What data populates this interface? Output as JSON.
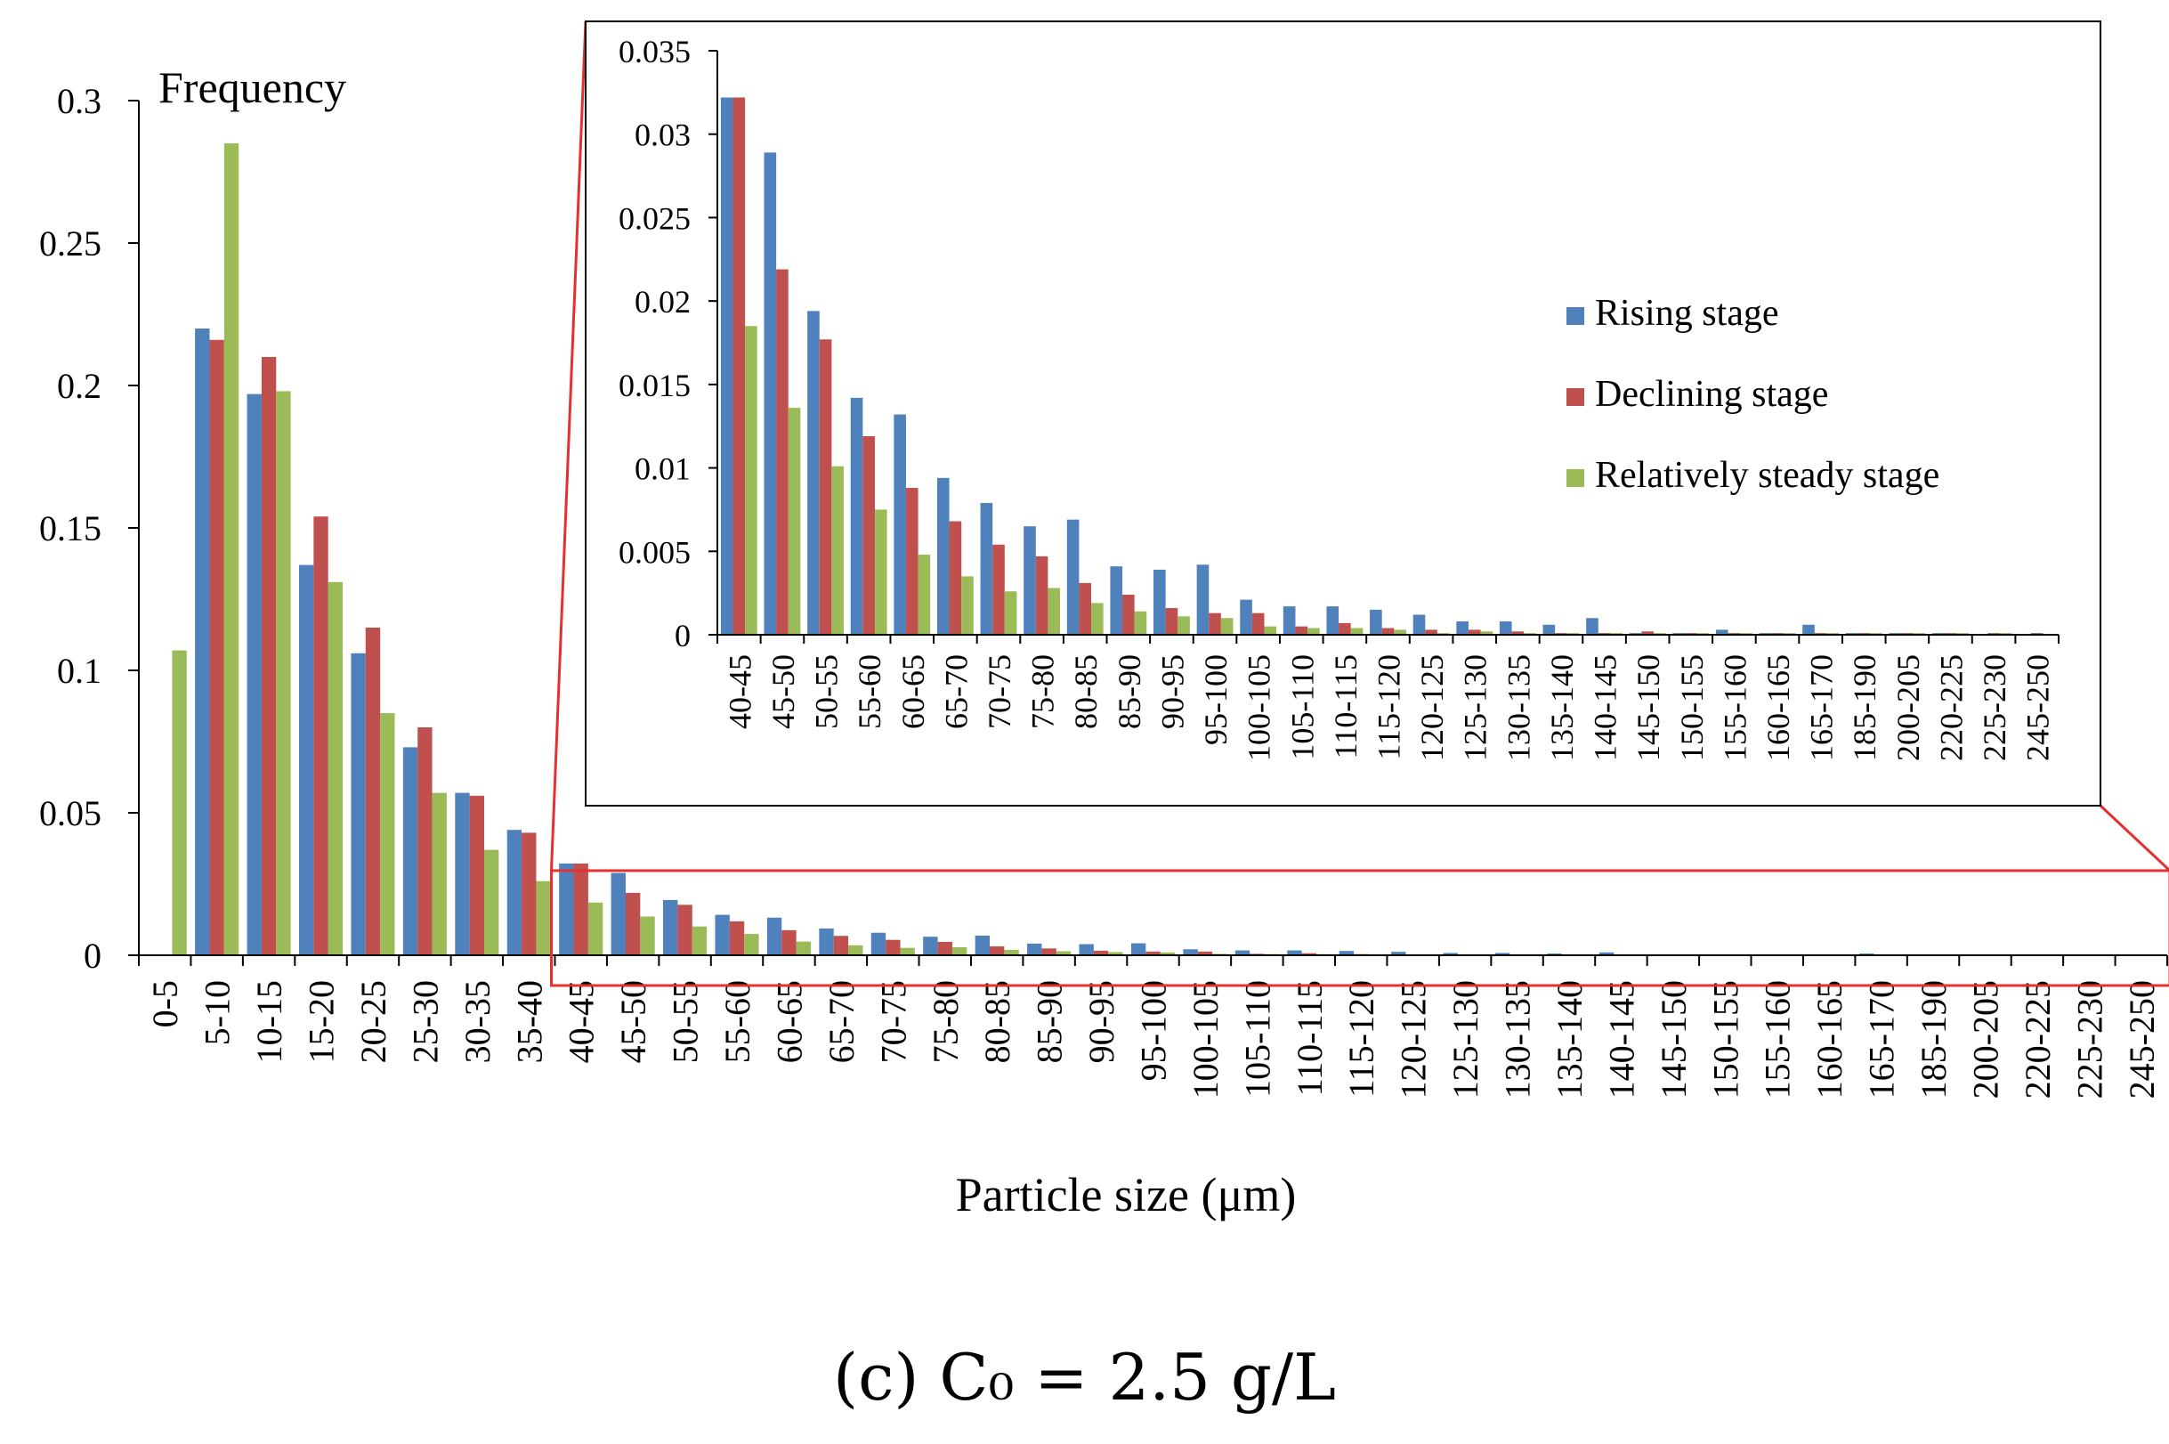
{
  "chart_data": {
    "main": {
      "type": "bar",
      "ylabel": "Frequency",
      "xlabel": "Particle size (μm)",
      "ylim": [
        0,
        0.3
      ],
      "yticks": [
        "0",
        "0.05",
        "0.1",
        "0.15",
        "0.2",
        "0.25",
        "0.3"
      ],
      "categories": [
        "0-5",
        "5-10",
        "10-15",
        "15-20",
        "20-25",
        "25-30",
        "30-35",
        "35-40",
        "40-45",
        "45-50",
        "50-55",
        "55-60",
        "60-65",
        "65-70",
        "70-75",
        "75-80",
        "80-85",
        "85-90",
        "90-95",
        "95-100",
        "100-105",
        "105-110",
        "110-115",
        "115-120",
        "120-125",
        "125-130",
        "130-135",
        "135-140",
        "140-145",
        "145-150",
        "150-155",
        "155-160",
        "160-165",
        "165-170",
        "185-190",
        "200-205",
        "220-225",
        "225-230",
        "245-250"
      ],
      "series": [
        {
          "name": "Rising stage",
          "color": "#4F81BD",
          "values": [
            0,
            0.22,
            0.197,
            0.137,
            0.106,
            0.073,
            0.057,
            0.044,
            0.0322,
            0.0289,
            0.0194,
            0.0142,
            0.0132,
            0.0094,
            0.0079,
            0.0065,
            0.0069,
            0.0041,
            0.0039,
            0.0042,
            0.0021,
            0.0017,
            0.0017,
            0.0015,
            0.0012,
            0.0008,
            0.0008,
            0.0006,
            0.001,
            0.0001,
            0.0001,
            0.0003,
            0.0001,
            0.0006,
            0.0001,
            0.0001,
            0.0001,
            0,
            0
          ]
        },
        {
          "name": "Declining stage",
          "color": "#C0504D",
          "values": [
            0,
            0.216,
            0.21,
            0.154,
            0.115,
            0.08,
            0.056,
            0.043,
            0.0322,
            0.0219,
            0.0177,
            0.0119,
            0.0088,
            0.0068,
            0.0054,
            0.0047,
            0.0031,
            0.0024,
            0.0016,
            0.0013,
            0.0013,
            0.0005,
            0.0007,
            0.0004,
            0.0003,
            0.0003,
            0.0002,
            0.0001,
            0.0001,
            0.0002,
            0.0001,
            0.0001,
            0.0001,
            0.0001,
            0.0001,
            0.0001,
            0.0001,
            0.0001,
            0.0001
          ]
        },
        {
          "name": "Relatively steady stage",
          "color": "#9BBB59",
          "values": [
            0.107,
            0.285,
            0.198,
            0.131,
            0.085,
            0.057,
            0.037,
            0.026,
            0.0185,
            0.0136,
            0.0101,
            0.0075,
            0.0048,
            0.0035,
            0.0026,
            0.0028,
            0.0019,
            0.0014,
            0.0011,
            0.001,
            0.0005,
            0.0004,
            0.0004,
            0.0003,
            0.0001,
            0.0002,
            0.0001,
            0.0001,
            0.0001,
            0.0001,
            0.0001,
            0.0001,
            0.0001,
            0.0001,
            0.0001,
            0.0001,
            0.0001,
            0.0001,
            0
          ]
        }
      ]
    },
    "inset": {
      "type": "bar",
      "ylim": [
        0,
        0.035
      ],
      "yticks": [
        "0",
        "0.005",
        "0.01",
        "0.015",
        "0.02",
        "0.025",
        "0.03",
        "0.035"
      ],
      "category_range": [
        "40-45",
        "245-250"
      ],
      "legend": [
        "Rising stage",
        "Declining stage",
        "Relatively steady stage"
      ],
      "legend_position": "right"
    },
    "caption": "(c)  C₀ = 2.5 g/L"
  }
}
